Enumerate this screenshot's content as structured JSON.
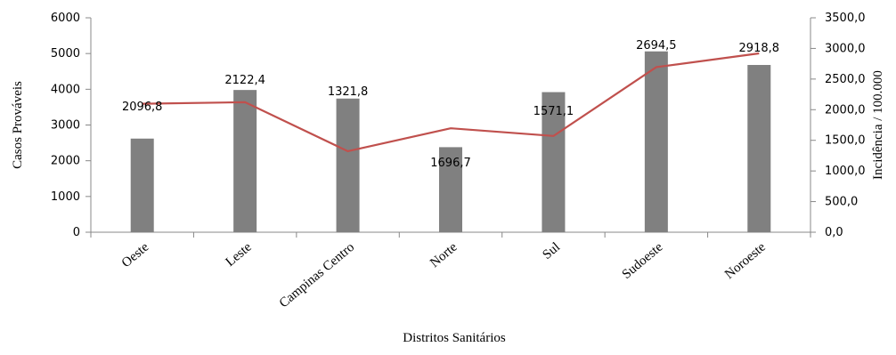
{
  "chart_data": {
    "type": "bar",
    "categories": [
      "Oeste",
      "Leste",
      "Campinas Centro",
      "Norte",
      "Sul",
      "Sudoeste",
      "Noroeste"
    ],
    "xlabel": "Distritos Sanitários",
    "ylabel": "Casos Prováveis",
    "y2label": "Incidência / 100.000",
    "ylim": [
      0,
      6000
    ],
    "y2lim": [
      0,
      3500
    ],
    "yticks": [
      "0",
      "1000",
      "2000",
      "3000",
      "4000",
      "5000",
      "6000"
    ],
    "y2ticks": [
      "0,0",
      "500,0",
      "1000,0",
      "1500,0",
      "2000,0",
      "2500,0",
      "3000,0",
      "3500,0"
    ],
    "grid": false,
    "legend": "none",
    "series": [
      {
        "type": "bar",
        "axis": "left",
        "color": "#808080",
        "values": [
          2620,
          3980,
          3740,
          2380,
          3920,
          5060,
          4680
        ]
      },
      {
        "type": "line",
        "axis": "right",
        "color": "#C0504D",
        "values": [
          2096.8,
          2122.4,
          1321.8,
          1696.7,
          1571.1,
          2694.5,
          2918.8
        ],
        "labels": [
          "2096,8",
          "2122,4",
          "1321,8",
          "1696,7",
          "1571,1",
          "2694,5",
          "2918,8"
        ]
      }
    ]
  }
}
